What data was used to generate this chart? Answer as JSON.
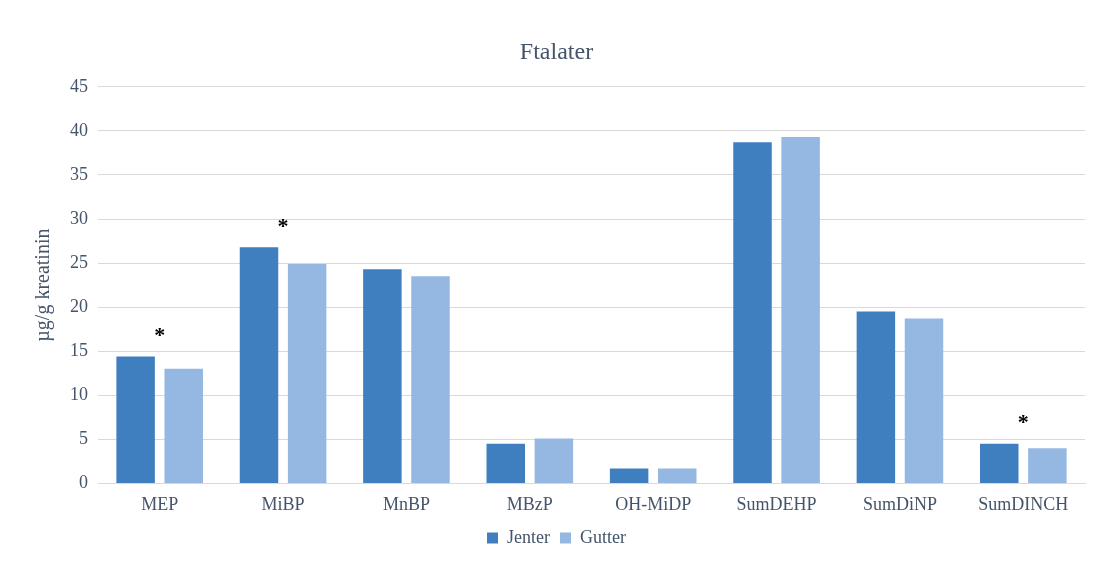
{
  "chart_data": {
    "type": "bar",
    "title": "Ftalater",
    "ylabel": "µg/g kreatinin",
    "categories": [
      "MEP",
      "MiBP",
      "MnBP",
      "MBzP",
      "OH-MiDP",
      "SumDEHP",
      "SumDiNP",
      "SumDINCH"
    ],
    "series": [
      {
        "name": "Jenter",
        "color": "#3f7fc0",
        "values": [
          14.4,
          26.8,
          24.3,
          4.5,
          1.7,
          38.7,
          19.5,
          4.5
        ]
      },
      {
        "name": "Gutter",
        "color": "#95b8e3",
        "values": [
          13.0,
          24.9,
          23.5,
          5.1,
          1.7,
          39.3,
          18.7,
          4.0
        ]
      }
    ],
    "ylim": [
      0,
      45
    ],
    "yticks": [
      0,
      5,
      10,
      15,
      20,
      25,
      30,
      35,
      40,
      45
    ],
    "grid": "y",
    "legend": "bottom",
    "annotations": [
      {
        "text": "*",
        "x": "MEP",
        "y": 14.4
      },
      {
        "text": "*",
        "x": "MiBP",
        "y": 26.8
      },
      {
        "text": "*",
        "x": "SumDINCH",
        "y": 4.5
      }
    ]
  }
}
